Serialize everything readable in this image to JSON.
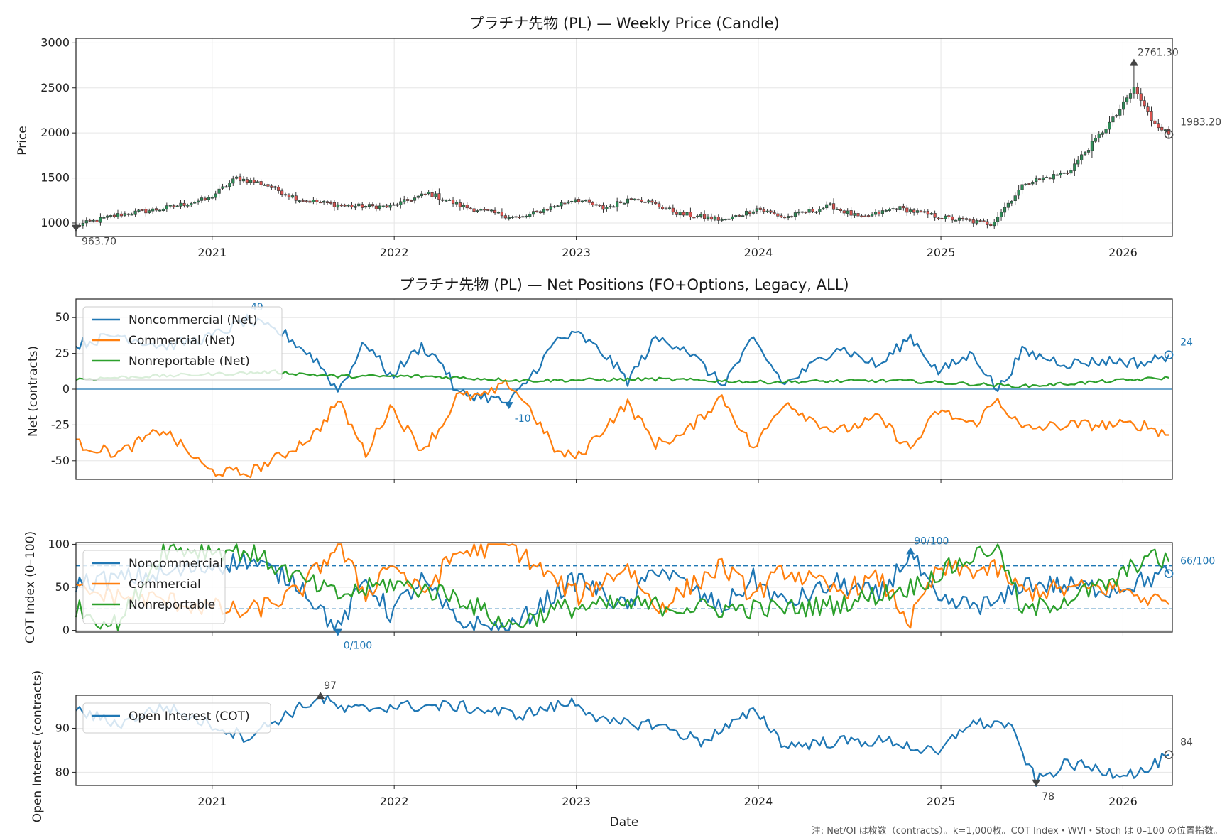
{
  "footer_note": "注: Net/OI は枚数（contracts）。k=1,000枚。COT Index・WVI・Stoch は 0–100 の位置指数。",
  "xlabel": "Date",
  "year_ticks": [
    "2021",
    "2022",
    "2023",
    "2024",
    "2025",
    "2026"
  ],
  "colors": {
    "blue": "#1f77b4",
    "orange": "#ff7f0e",
    "green": "#2ca02c",
    "grid": "#e6e6e6",
    "candle_up": "#2e8b57",
    "candle_down": "#d9534f",
    "candle_body": "#444444"
  },
  "chart_data": [
    {
      "type": "candlestick",
      "title": "プラチナ先物 (PL) — Weekly Price (Candle)",
      "ylabel": "Price",
      "ylim": [
        850,
        3050
      ],
      "yticks": [
        1000,
        1500,
        2000,
        2500,
        3000
      ],
      "grid": true,
      "close_anchors": [
        [
          "2020-04-03",
          970
        ],
        [
          "2020-06-26",
          1090
        ],
        [
          "2020-09-25",
          1160
        ],
        [
          "2020-12-25",
          1270
        ],
        [
          "2021-02-19",
          1500
        ],
        [
          "2021-04-16",
          1430
        ],
        [
          "2021-06-25",
          1260
        ],
        [
          "2021-09-24",
          1190
        ],
        [
          "2021-12-24",
          1180
        ],
        [
          "2022-03-11",
          1330
        ],
        [
          "2022-05-20",
          1180
        ],
        [
          "2022-09-09",
          1050
        ],
        [
          "2022-12-30",
          1270
        ],
        [
          "2023-02-24",
          1160
        ],
        [
          "2023-04-28",
          1290
        ],
        [
          "2023-07-28",
          1100
        ],
        [
          "2023-10-27",
          1030
        ],
        [
          "2023-12-29",
          1160
        ],
        [
          "2024-02-23",
          1060
        ],
        [
          "2024-05-24",
          1190
        ],
        [
          "2024-07-26",
          1050
        ],
        [
          "2024-10-04",
          1170
        ],
        [
          "2025-01-03",
          1060
        ],
        [
          "2025-04-11",
          990
        ],
        [
          "2025-06-20",
          1450
        ],
        [
          "2025-09-12",
          1560
        ],
        [
          "2025-12-19",
          2200
        ],
        [
          "2026-01-23",
          2500
        ],
        [
          "2026-02-27",
          2150
        ],
        [
          "2026-04-03",
          1983.2
        ]
      ],
      "annotations": [
        {
          "label": "2761.30",
          "date": "2026-01-23",
          "value": 2761.3,
          "marker": "high"
        },
        {
          "label": "963.70",
          "date": "2020-04-03",
          "value": 963.7,
          "marker": "low"
        },
        {
          "label": "1983.20",
          "date": "2026-04-03",
          "value": 1983.2,
          "marker": "last"
        }
      ]
    },
    {
      "type": "line",
      "title": "プラチナ先物 (PL) — Net Positions (FO+Options, Legacy, ALL)",
      "ylabel": "Net (contracts)",
      "ylim": [
        -63,
        63
      ],
      "yticks": [
        -50,
        -25,
        0,
        25,
        50
      ],
      "zero_line": true,
      "series": [
        {
          "name": "Noncommercial (Net)",
          "color": "#1f77b4",
          "anchors": [
            [
              "2020-04-03",
              31
            ],
            [
              "2020-06-26",
              38
            ],
            [
              "2020-09-25",
              30
            ],
            [
              "2020-12-25",
              36
            ],
            [
              "2021-03-12",
              48
            ],
            [
              "2021-05-28",
              38
            ],
            [
              "2021-07-30",
              20
            ],
            [
              "2021-09-10",
              -1
            ],
            [
              "2021-11-05",
              33
            ],
            [
              "2021-12-24",
              9
            ],
            [
              "2022-02-25",
              30
            ],
            [
              "2022-04-08",
              18
            ],
            [
              "2022-05-06",
              -3
            ],
            [
              "2022-07-01",
              -5
            ],
            [
              "2022-08-19",
              -10
            ],
            [
              "2022-09-23",
              5
            ],
            [
              "2022-11-25",
              35
            ],
            [
              "2023-01-06",
              38
            ],
            [
              "2023-03-03",
              23
            ],
            [
              "2023-04-14",
              6
            ],
            [
              "2023-06-09",
              35
            ],
            [
              "2023-08-04",
              30
            ],
            [
              "2023-10-20",
              3
            ],
            [
              "2023-12-22",
              34
            ],
            [
              "2024-02-23",
              3
            ],
            [
              "2024-04-12",
              15
            ],
            [
              "2024-06-07",
              30
            ],
            [
              "2024-08-30",
              16
            ],
            [
              "2024-11-01",
              37
            ],
            [
              "2024-12-27",
              12
            ],
            [
              "2025-03-07",
              25
            ],
            [
              "2025-04-25",
              -1
            ],
            [
              "2025-06-13",
              26
            ],
            [
              "2025-09-12",
              18
            ],
            [
              "2025-12-12",
              20
            ],
            [
              "2026-02-13",
              18
            ],
            [
              "2026-04-03",
              24
            ]
          ]
        },
        {
          "name": "Commercial (Net)",
          "color": "#ff7f0e",
          "anchors": [
            [
              "2020-04-03",
              -38
            ],
            [
              "2020-06-26",
              -45
            ],
            [
              "2020-09-25",
              -28
            ],
            [
              "2020-12-25",
              -57
            ],
            [
              "2021-03-12",
              -59
            ],
            [
              "2021-05-28",
              -45
            ],
            [
              "2021-07-30",
              -30
            ],
            [
              "2021-09-10",
              -8
            ],
            [
              "2021-11-05",
              -45
            ],
            [
              "2021-12-24",
              -12
            ],
            [
              "2022-02-25",
              -42
            ],
            [
              "2022-04-08",
              -25
            ],
            [
              "2022-05-06",
              -5
            ],
            [
              "2022-07-01",
              -5
            ],
            [
              "2022-08-19",
              4
            ],
            [
              "2022-09-23",
              -10
            ],
            [
              "2022-11-25",
              -45
            ],
            [
              "2023-01-06",
              -47
            ],
            [
              "2023-03-03",
              -25
            ],
            [
              "2023-04-14",
              -10
            ],
            [
              "2023-06-09",
              -38
            ],
            [
              "2023-08-04",
              -32
            ],
            [
              "2023-10-20",
              -5
            ],
            [
              "2023-12-22",
              -42
            ],
            [
              "2024-02-23",
              -8
            ],
            [
              "2024-04-12",
              -20
            ],
            [
              "2024-06-07",
              -30
            ],
            [
              "2024-08-30",
              -20
            ],
            [
              "2024-11-01",
              -42
            ],
            [
              "2024-12-27",
              -15
            ],
            [
              "2025-03-07",
              -25
            ],
            [
              "2025-04-25",
              -7
            ],
            [
              "2025-06-13",
              -28
            ],
            [
              "2025-09-12",
              -25
            ],
            [
              "2025-12-12",
              -25
            ],
            [
              "2026-02-13",
              -25
            ],
            [
              "2026-04-03",
              -32
            ]
          ]
        },
        {
          "name": "Nonreportable (Net)",
          "color": "#2ca02c",
          "anchors": [
            [
              "2020-04-03",
              7
            ],
            [
              "2020-08-28",
              9
            ],
            [
              "2021-05-07",
              12
            ],
            [
              "2021-09-10",
              9
            ],
            [
              "2022-03-04",
              9
            ],
            [
              "2022-09-23",
              6
            ],
            [
              "2023-06-09",
              7
            ],
            [
              "2024-01-05",
              5
            ],
            [
              "2024-10-04",
              6
            ],
            [
              "2025-06-13",
              2
            ],
            [
              "2025-11-07",
              5
            ],
            [
              "2026-04-03",
              8
            ]
          ]
        }
      ],
      "annotations": [
        {
          "label": "49",
          "date": "2021-03-12",
          "value": 49,
          "marker": "high"
        },
        {
          "label": "-10",
          "date": "2022-08-19",
          "value": -10,
          "marker": "low"
        },
        {
          "label": "24",
          "date": "2026-04-03",
          "value": 24,
          "marker": "last"
        }
      ],
      "legend": "upper-left"
    },
    {
      "type": "line",
      "title": "",
      "ylabel": "COT Index (0–100)",
      "ylim": [
        -2,
        102
      ],
      "yticks": [
        0,
        50,
        100
      ],
      "hlines": [
        75,
        25
      ],
      "series": [
        {
          "name": "Noncommercial",
          "color": "#1f77b4",
          "anchors": [
            [
              "2020-04-03",
              55
            ],
            [
              "2020-09-25",
              65
            ],
            [
              "2021-03-12",
              82
            ],
            [
              "2021-06-25",
              55
            ],
            [
              "2021-09-10",
              0
            ],
            [
              "2021-11-05",
              60
            ],
            [
              "2021-12-24",
              20
            ],
            [
              "2022-02-25",
              58
            ],
            [
              "2022-05-06",
              10
            ],
            [
              "2022-08-19",
              0
            ],
            [
              "2022-11-25",
              45
            ],
            [
              "2023-01-06",
              60
            ],
            [
              "2023-04-14",
              25
            ],
            [
              "2023-06-09",
              75
            ],
            [
              "2023-10-20",
              25
            ],
            [
              "2023-12-22",
              60
            ],
            [
              "2024-02-23",
              30
            ],
            [
              "2024-06-07",
              55
            ],
            [
              "2024-08-30",
              40
            ],
            [
              "2024-11-01",
              90
            ],
            [
              "2024-12-27",
              30
            ],
            [
              "2025-04-25",
              30
            ],
            [
              "2025-06-13",
              55
            ],
            [
              "2025-12-12",
              48
            ],
            [
              "2026-04-03",
              66
            ]
          ]
        },
        {
          "name": "Commercial",
          "color": "#ff7f0e",
          "anchors": [
            [
              "2020-04-03",
              45
            ],
            [
              "2020-09-25",
              35
            ],
            [
              "2021-03-12",
              20
            ],
            [
              "2021-06-25",
              45
            ],
            [
              "2021-09-10",
              100
            ],
            [
              "2021-11-05",
              40
            ],
            [
              "2021-12-24",
              80
            ],
            [
              "2022-02-25",
              42
            ],
            [
              "2022-05-06",
              90
            ],
            [
              "2022-08-19",
              100
            ],
            [
              "2022-11-25",
              55
            ],
            [
              "2023-01-06",
              40
            ],
            [
              "2023-04-14",
              75
            ],
            [
              "2023-06-09",
              25
            ],
            [
              "2023-10-20",
              75
            ],
            [
              "2023-12-22",
              40
            ],
            [
              "2024-02-23",
              70
            ],
            [
              "2024-06-07",
              45
            ],
            [
              "2024-08-30",
              60
            ],
            [
              "2024-11-01",
              10
            ],
            [
              "2024-12-27",
              70
            ],
            [
              "2025-04-25",
              70
            ],
            [
              "2025-06-13",
              45
            ],
            [
              "2025-12-12",
              50
            ],
            [
              "2026-04-03",
              30
            ]
          ]
        },
        {
          "name": "Nonreportable",
          "color": "#2ca02c",
          "anchors": [
            [
              "2020-04-03",
              25
            ],
            [
              "2020-06-26",
              5
            ],
            [
              "2020-09-25",
              95
            ],
            [
              "2021-03-12",
              92
            ],
            [
              "2021-06-25",
              60
            ],
            [
              "2021-09-10",
              40
            ],
            [
              "2021-12-24",
              55
            ],
            [
              "2022-05-06",
              40
            ],
            [
              "2022-08-19",
              5
            ],
            [
              "2022-11-25",
              25
            ],
            [
              "2023-04-14",
              30
            ],
            [
              "2023-10-20",
              25
            ],
            [
              "2024-02-23",
              25
            ],
            [
              "2024-06-07",
              30
            ],
            [
              "2024-11-01",
              50
            ],
            [
              "2025-04-25",
              100
            ],
            [
              "2025-06-13",
              20
            ],
            [
              "2025-12-12",
              55
            ],
            [
              "2026-02-13",
              85
            ],
            [
              "2026-04-03",
              80
            ]
          ]
        }
      ],
      "annotations": [
        {
          "label": "90/100",
          "date": "2024-11-01",
          "value": 90,
          "marker": "high"
        },
        {
          "label": "0/100",
          "date": "2021-09-10",
          "value": 0,
          "marker": "low"
        },
        {
          "label": "66/100",
          "date": "2026-04-03",
          "value": 66,
          "marker": "last"
        }
      ],
      "legend": "upper-left"
    },
    {
      "type": "line",
      "title": "",
      "ylabel": "Open Interest (contracts)",
      "ylim": [
        77,
        97.5
      ],
      "yticks": [
        80,
        90
      ],
      "series": [
        {
          "name": "Open Interest (COT)",
          "color": "#1f77b4",
          "anchors": [
            [
              "2020-04-03",
              94
            ],
            [
              "2020-06-26",
              91
            ],
            [
              "2020-09-25",
              95
            ],
            [
              "2020-12-25",
              91
            ],
            [
              "2021-03-12",
              88
            ],
            [
              "2021-05-28",
              93
            ],
            [
              "2021-08-06",
              97
            ],
            [
              "2021-09-24",
              94
            ],
            [
              "2021-12-24",
              95
            ],
            [
              "2022-05-06",
              95
            ],
            [
              "2022-09-09",
              93
            ],
            [
              "2022-12-30",
              96
            ],
            [
              "2023-03-03",
              91
            ],
            [
              "2023-06-09",
              91
            ],
            [
              "2023-09-08",
              87
            ],
            [
              "2023-12-29",
              94
            ],
            [
              "2024-02-23",
              86
            ],
            [
              "2024-06-07",
              87
            ],
            [
              "2024-09-27",
              87
            ],
            [
              "2024-12-27",
              84
            ],
            [
              "2025-02-21",
              91
            ],
            [
              "2025-05-16",
              91
            ],
            [
              "2025-07-11",
              78
            ],
            [
              "2025-09-12",
              82
            ],
            [
              "2025-12-12",
              80
            ],
            [
              "2026-02-13",
              80
            ],
            [
              "2026-04-03",
              84
            ]
          ]
        }
      ],
      "annotations": [
        {
          "label": "97",
          "date": "2021-08-06",
          "value": 97,
          "marker": "high"
        },
        {
          "label": "78",
          "date": "2025-07-11",
          "value": 78,
          "marker": "low"
        },
        {
          "label": "84",
          "date": "2026-04-03",
          "value": 84,
          "marker": "last"
        }
      ],
      "legend": "upper-left"
    }
  ]
}
